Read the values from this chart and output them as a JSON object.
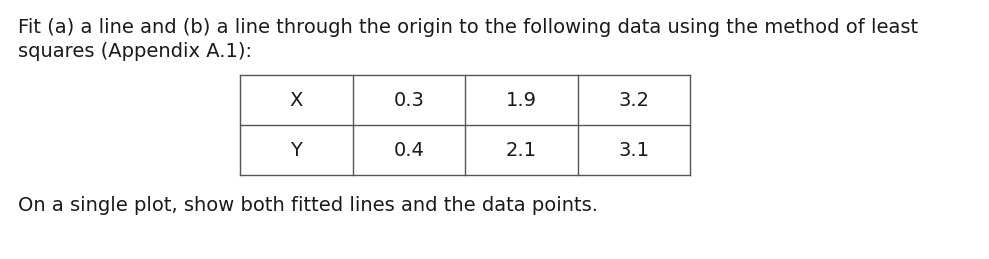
{
  "line1": "Fit (a) a line and (b) a line through the origin to the following data using the method of least",
  "line2": "squares (Appendix A.1):",
  "line3": "On a single plot, show both fitted lines and the data points.",
  "table_headers": [
    "X",
    "0.3",
    "1.9",
    "3.2"
  ],
  "table_row2": [
    "Y",
    "0.4",
    "2.1",
    "3.1"
  ],
  "bg_color": "#ffffff",
  "text_color": "#1a1a1a",
  "font_size": 14.0,
  "table_font_size": 14.0,
  "figsize": [
    9.89,
    2.59
  ],
  "dpi": 100
}
